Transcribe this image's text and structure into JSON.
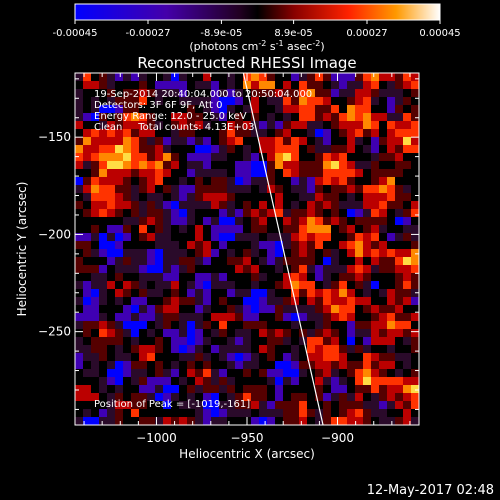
{
  "colorbar": {
    "ticks": [
      "-0.00045",
      "-0.00027",
      "-8.9e-05",
      "8.9e-05",
      "0.00027",
      "0.00045"
    ],
    "tick_values": [
      -0.00045,
      -0.00027,
      -8.9e-05,
      8.9e-05,
      0.00027,
      0.00045
    ],
    "range": [
      -0.00045,
      0.00045
    ],
    "unit_prefix": "(photons cm",
    "unit_exp1": "-2",
    "unit_mid": " s",
    "unit_exp2": "-1",
    "unit_mid2": " asec",
    "unit_exp3": "-2",
    "unit_suffix": ")"
  },
  "chart_data": {
    "type": "heatmap",
    "title": "Reconstructed RHESSI Image",
    "xlabel": "Heliocentric X (arcsec)",
    "ylabel": "Heliocentric Y (arcsec)",
    "xlim": [
      -1045,
      -855
    ],
    "ylim": [
      -298,
      -117
    ],
    "xticks": [
      -1000,
      -950,
      -900
    ],
    "xtick_labels": [
      "−1000",
      "−950",
      "−900"
    ],
    "yticks": [
      -150,
      -200,
      -250
    ],
    "ytick_labels": [
      "−150",
      "−200",
      "−250"
    ],
    "limb_line": [
      [
        -952,
        -117
      ],
      [
        -908,
        -298
      ]
    ],
    "annotations": [
      "19-Sep-2014 20:40:04.000 to 20:50:04.000",
      "Detectors: 3F 6F 9F, Att 0",
      "Energy Range: 12.0 - 25.0 keV",
      "Clean     Total counts: 4.13E+03"
    ],
    "peak_label": "Position of Peak = [-1019,-161]",
    "peak": [
      -1019,
      -161
    ],
    "colormap": [
      "#0000ff",
      "#3f00b3",
      "#2a0a2a",
      "#000000",
      "#550000",
      "#bb0000",
      "#ff3300",
      "#ff8800",
      "#ffdd44",
      "#ffffff"
    ]
  },
  "footer": {
    "timestamp": "12-May-2017 02:48"
  }
}
